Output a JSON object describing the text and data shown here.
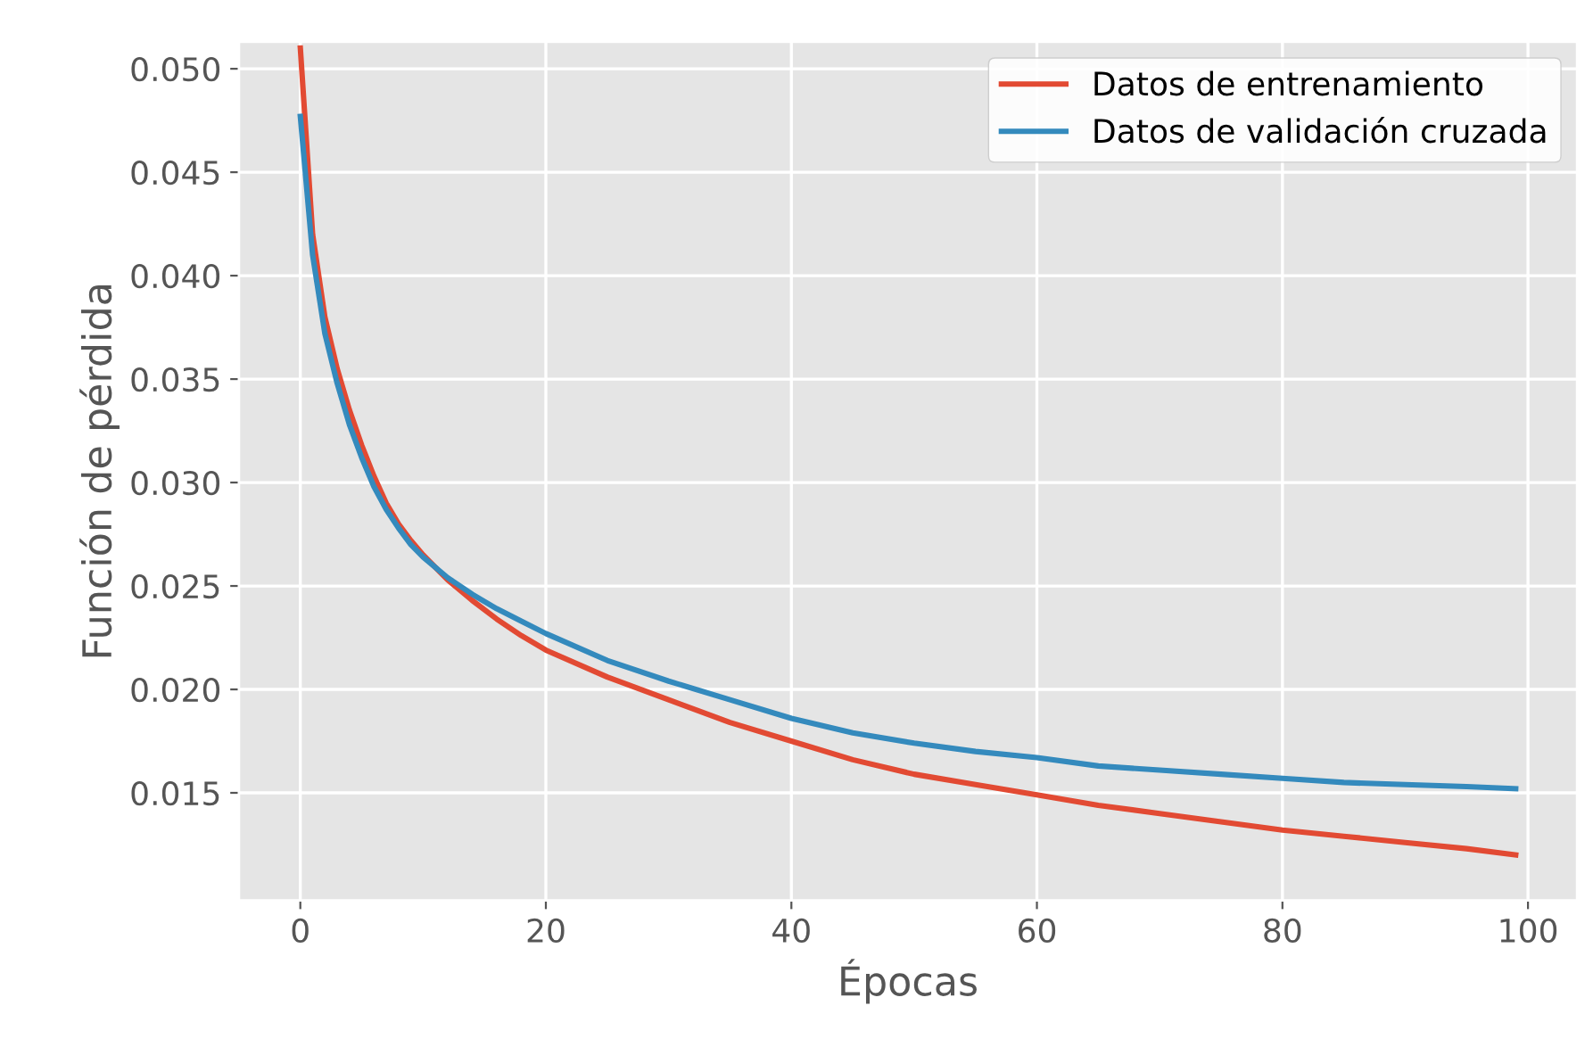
{
  "chart_data": {
    "type": "line",
    "xlabel": "Épocas",
    "ylabel": "Función de pérdida",
    "xlim": [
      -5,
      104
    ],
    "ylim": [
      0.0098,
      0.0513
    ],
    "xticks": [
      0,
      20,
      40,
      60,
      80,
      100
    ],
    "yticks": [
      {
        "value": 0.015,
        "label": "0.015"
      },
      {
        "value": 0.02,
        "label": "0.020"
      },
      {
        "value": 0.025,
        "label": "0.025"
      },
      {
        "value": 0.03,
        "label": "0.030"
      },
      {
        "value": 0.035,
        "label": "0.035"
      },
      {
        "value": 0.04,
        "label": "0.040"
      },
      {
        "value": 0.045,
        "label": "0.045"
      },
      {
        "value": 0.05,
        "label": "0.050"
      }
    ],
    "grid": true,
    "legend": "top right",
    "marker": "none",
    "line_style": "solid",
    "x": [
      0,
      1,
      2,
      3,
      4,
      5,
      6,
      7,
      8,
      9,
      10,
      12,
      14,
      16,
      18,
      20,
      25,
      30,
      35,
      40,
      45,
      50,
      55,
      60,
      65,
      70,
      75,
      80,
      85,
      90,
      95,
      99
    ],
    "series": [
      {
        "name": "Datos de entrenamiento",
        "color": "#e24a33",
        "values": [
          0.051,
          0.042,
          0.038,
          0.0355,
          0.0335,
          0.0318,
          0.0303,
          0.029,
          0.028,
          0.0272,
          0.0265,
          0.0253,
          0.0243,
          0.0234,
          0.0226,
          0.0219,
          0.0206,
          0.0195,
          0.0184,
          0.0175,
          0.0166,
          0.0159,
          0.0154,
          0.0149,
          0.0144,
          0.014,
          0.0136,
          0.0132,
          0.0129,
          0.0126,
          0.0123,
          0.012
        ]
      },
      {
        "name": "Datos de validación cruzada",
        "color": "#348abd",
        "values": [
          0.0477,
          0.041,
          0.0372,
          0.0348,
          0.0328,
          0.0312,
          0.0298,
          0.0287,
          0.0278,
          0.027,
          0.0264,
          0.0254,
          0.0246,
          0.0239,
          0.0233,
          0.0227,
          0.0214,
          0.0204,
          0.0195,
          0.0186,
          0.0179,
          0.0174,
          0.017,
          0.0167,
          0.0163,
          0.0161,
          0.0159,
          0.0157,
          0.0155,
          0.0154,
          0.0153,
          0.0152
        ]
      }
    ]
  }
}
